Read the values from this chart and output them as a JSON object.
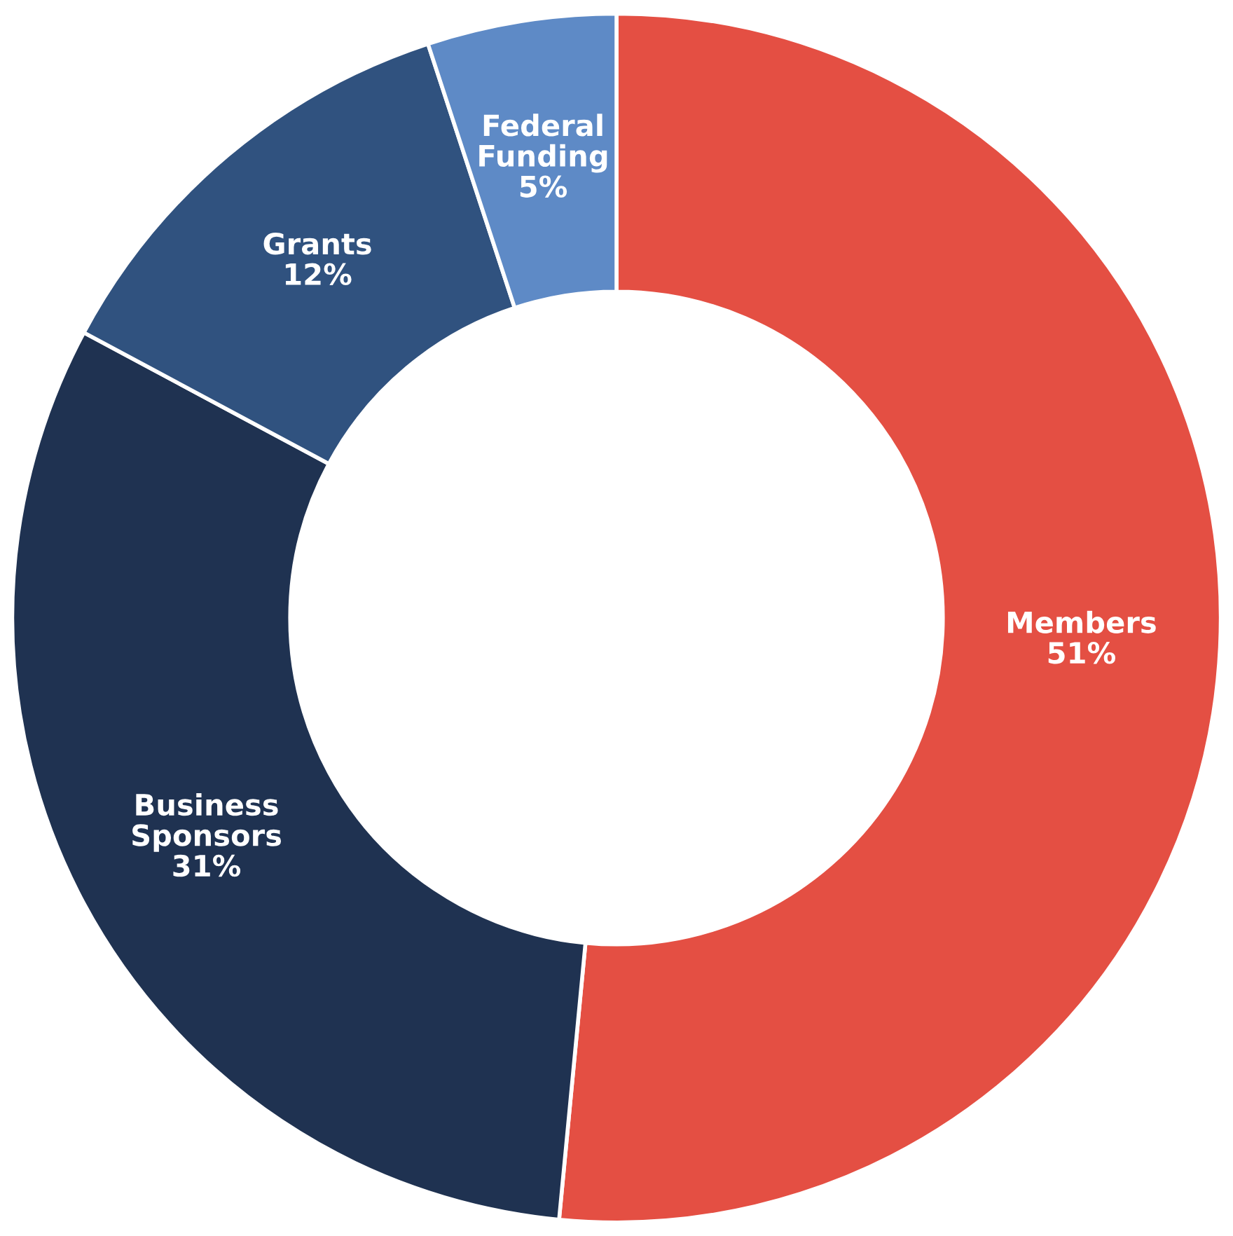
{
  "chart_data": {
    "type": "donut",
    "categories": [
      "Members",
      "Business\nSponsors",
      "Grants",
      "Federal\nFunding"
    ],
    "values": [
      51,
      31,
      12,
      5
    ],
    "value_labels": [
      "51%",
      "31%",
      "12%",
      "5%"
    ],
    "colors": [
      "#e44f43",
      "#1f3251",
      "#30527f",
      "#5e8ac6"
    ],
    "legend": false
  }
}
